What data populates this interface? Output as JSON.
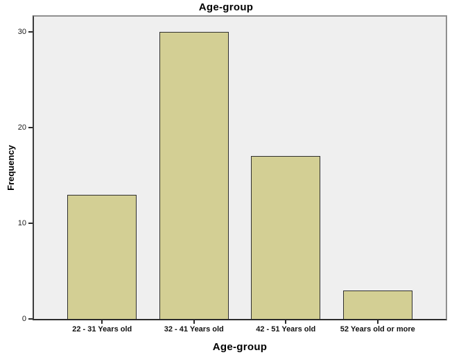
{
  "chart_data": {
    "type": "bar",
    "title": "Age-group",
    "xlabel": "Age-group",
    "ylabel": "Frequency",
    "categories": [
      "22 - 31 Years old",
      "32 - 41 Years old",
      "42 - 51 Years old",
      "52 Years old or more"
    ],
    "values": [
      13,
      30,
      17,
      3
    ],
    "yticks": [
      0,
      10,
      20,
      30
    ],
    "ylim": [
      0,
      31.6
    ],
    "grid": false,
    "legend": false,
    "colors": {
      "bar_fill": "#d3cf94",
      "bar_border": "#2e2e2e",
      "plot_background": "#efefef",
      "plot_frame": "#8f8f8f",
      "axis_line": "#2b2b2b",
      "text": "#000000",
      "outer_background": "#ffffff"
    }
  }
}
